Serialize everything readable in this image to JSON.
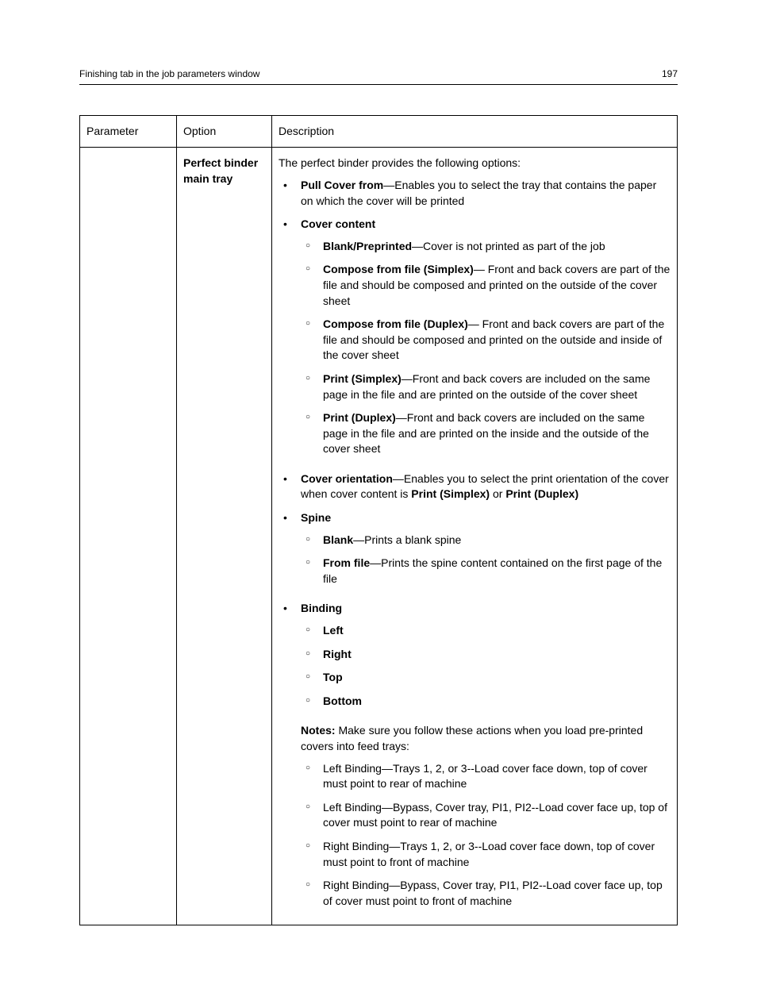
{
  "header": {
    "title": "Finishing tab in the job parameters window",
    "page_number": "197"
  },
  "table": {
    "columns": [
      "Parameter",
      "Option",
      "Description"
    ],
    "row": {
      "parameter": "",
      "option": "Perfect binder main tray",
      "intro": "The perfect binder provides the following options:",
      "pull_cover": {
        "label": "Pull Cover from",
        "desc": "—Enables you to select the tray that contains the paper on which the cover will be printed"
      },
      "cover_content": {
        "label": "Cover content",
        "items": [
          {
            "label": "Blank/Preprinted",
            "desc": "—Cover is not printed as part of the job"
          },
          {
            "label": "Compose from file (Simplex)",
            "desc": "— Front and back covers are part of the file and should be composed and printed on the outside of the cover sheet"
          },
          {
            "label": "Compose from file (Duplex)",
            "desc": "— Front and back covers are part of the file and should be composed and printed on the outside and inside of the cover sheet"
          },
          {
            "label": "Print (Simplex)",
            "desc": "—Front and back covers are included on the same page in the file and are printed on the outside of the cover sheet"
          },
          {
            "label": "Print (Duplex)",
            "desc": "—Front and back covers are included on the same page in the file and are printed on the inside and the outside of the cover sheet"
          }
        ]
      },
      "cover_orientation": {
        "label": "Cover orientation",
        "desc_pre": "—Enables you to select the print orientation of the cover when cover content is ",
        "bold1": "Print (Simplex)",
        "mid": " or ",
        "bold2": "Print (Duplex)"
      },
      "spine": {
        "label": "Spine",
        "items": [
          {
            "label": "Blank",
            "desc": "—Prints a blank spine"
          },
          {
            "label": "From file",
            "desc": "—Prints the spine content contained on the first page of the file"
          }
        ]
      },
      "binding": {
        "label": "Binding",
        "items": [
          "Left",
          "Right",
          "Top",
          "Bottom"
        ]
      },
      "notes": {
        "label": "Notes:",
        "desc": " Make sure you follow these actions when you load pre-printed covers into feed trays:",
        "items": [
          "Left Binding—Trays 1, 2, or 3--Load cover face down, top of cover must point to rear of machine",
          "Left Binding—Bypass, Cover tray, PI1, PI2--Load cover face up, top of cover must point to rear of machine",
          "Right Binding—Trays 1, 2, or 3--Load cover face down, top of cover must point to front of machine",
          "Right Binding—Bypass, Cover tray, PI1, PI2--Load cover face up, top of cover must point to front of machine"
        ]
      }
    }
  }
}
